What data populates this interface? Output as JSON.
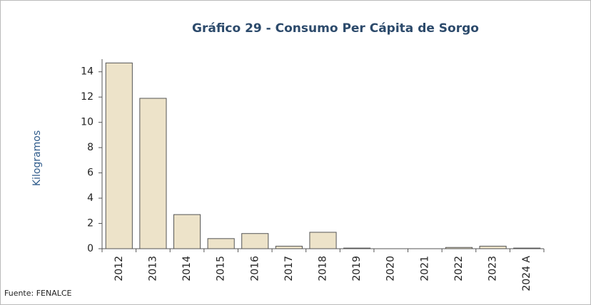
{
  "chart_data": {
    "type": "bar",
    "title": "Gráfico 29 - Consumo Per Cápita de Sorgo",
    "y_label": "Kilogramos",
    "source": "Fuente: FENALCE",
    "categories": [
      "2012",
      "2013",
      "2014",
      "2015",
      "2016",
      "2017",
      "2018",
      "2019",
      "2020",
      "2021",
      "2022",
      "2023",
      "2024 A"
    ],
    "values": [
      14.7,
      11.9,
      2.7,
      0.8,
      1.2,
      0.2,
      1.3,
      0.05,
      0,
      0,
      0.1,
      0.2,
      0.05
    ],
    "color": "#ede3c9",
    "ylim": [
      0,
      15
    ],
    "yticks": [
      0,
      2,
      4,
      6,
      8,
      10,
      12,
      14
    ],
    "grid": false
  }
}
